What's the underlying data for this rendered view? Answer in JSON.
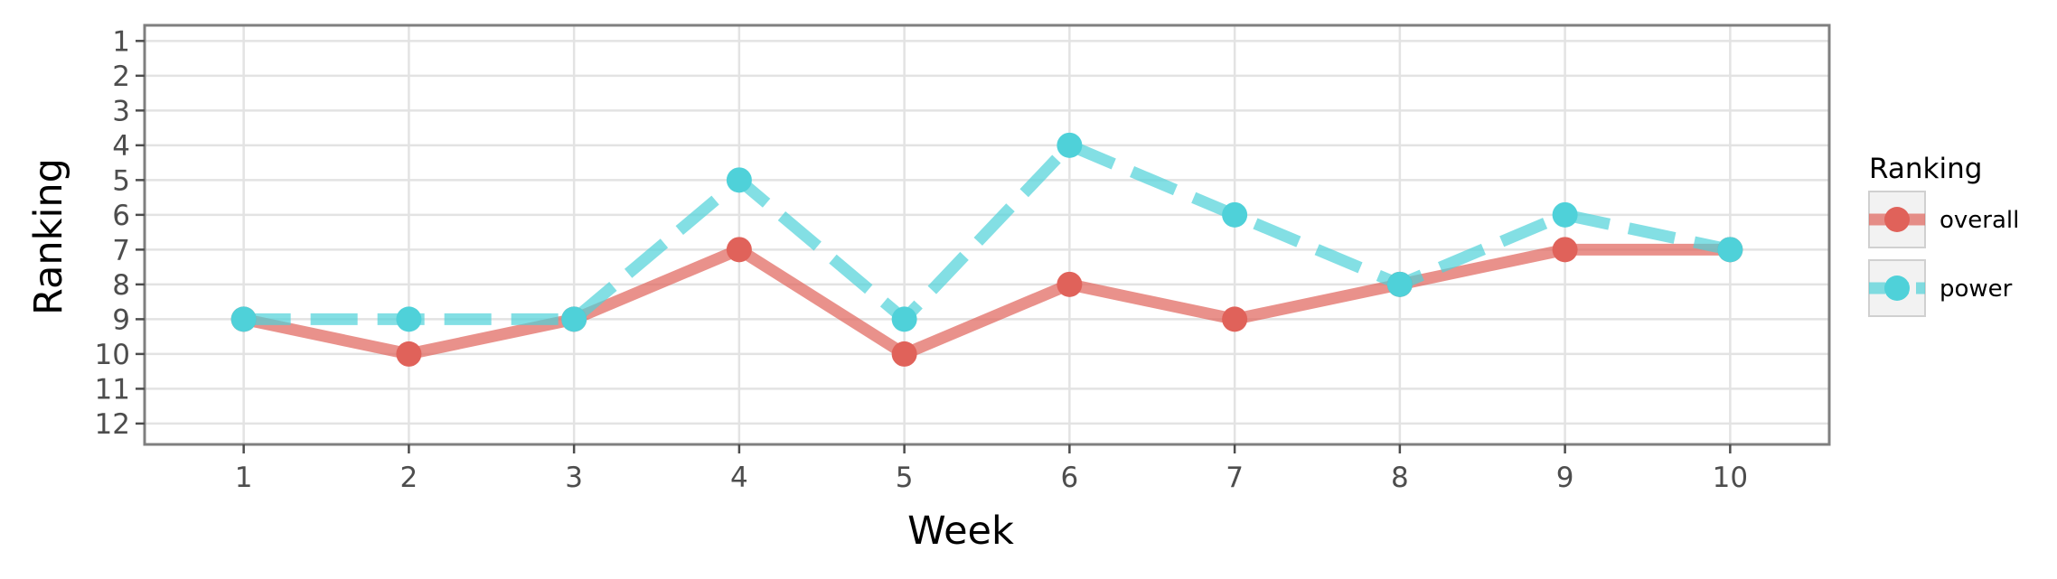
{
  "chart_data": {
    "type": "line",
    "xlabel": "Week",
    "ylabel": "Ranking",
    "x": [
      1,
      2,
      3,
      4,
      5,
      6,
      7,
      8,
      9,
      10
    ],
    "x_ticks": [
      "1",
      "2",
      "3",
      "4",
      "5",
      "6",
      "7",
      "8",
      "9",
      "10"
    ],
    "y_ticks": [
      "1",
      "2",
      "3",
      "4",
      "5",
      "6",
      "7",
      "8",
      "9",
      "10",
      "11",
      "12"
    ],
    "y_reversed": true,
    "xlim": [
      0.4,
      10.6
    ],
    "ylim": [
      0.55,
      12.6
    ],
    "grid": true,
    "legend": {
      "title": "Ranking",
      "position": "right"
    },
    "series": [
      {
        "name": "overall",
        "color": "#E0625A",
        "linestyle": "solid",
        "values": [
          9,
          10,
          9,
          7,
          10,
          8,
          9,
          8,
          7,
          7
        ]
      },
      {
        "name": "power",
        "color": "#4FD1D9",
        "linestyle": "dashed",
        "values": [
          9,
          9,
          9,
          5,
          9,
          4,
          6,
          8,
          6,
          7
        ]
      }
    ]
  }
}
